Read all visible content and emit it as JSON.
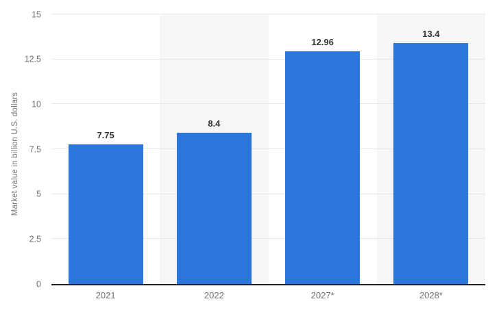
{
  "chart_data": {
    "type": "bar",
    "categories": [
      "2021",
      "2022",
      "2027*",
      "2028*"
    ],
    "values": [
      7.75,
      8.4,
      12.96,
      13.4
    ],
    "value_labels": [
      "7.75",
      "8.4",
      "12.96",
      "13.4"
    ],
    "xlabel": "",
    "ylabel": "Market value in billion U.S. dollars",
    "ylim": [
      0,
      15
    ],
    "yticks": [
      0,
      2.5,
      5,
      7.5,
      10,
      12.5,
      15
    ],
    "ytick_labels": [
      "0",
      "2.5",
      "5",
      "7.5",
      "10",
      "12.5",
      "15"
    ],
    "grid": "horizontal-dotted",
    "legend": "none",
    "banded_columns": [
      1,
      3
    ],
    "colors": {
      "bar": "#2b76dd",
      "plot_band": "#f6f6f6",
      "gridline": "#d4d4d4",
      "baseline": "#1f1f1f",
      "tick_text": "#6f6f6f",
      "value_text": "#333333",
      "axis_title_text": "#757575",
      "background": "#ffffff"
    }
  }
}
